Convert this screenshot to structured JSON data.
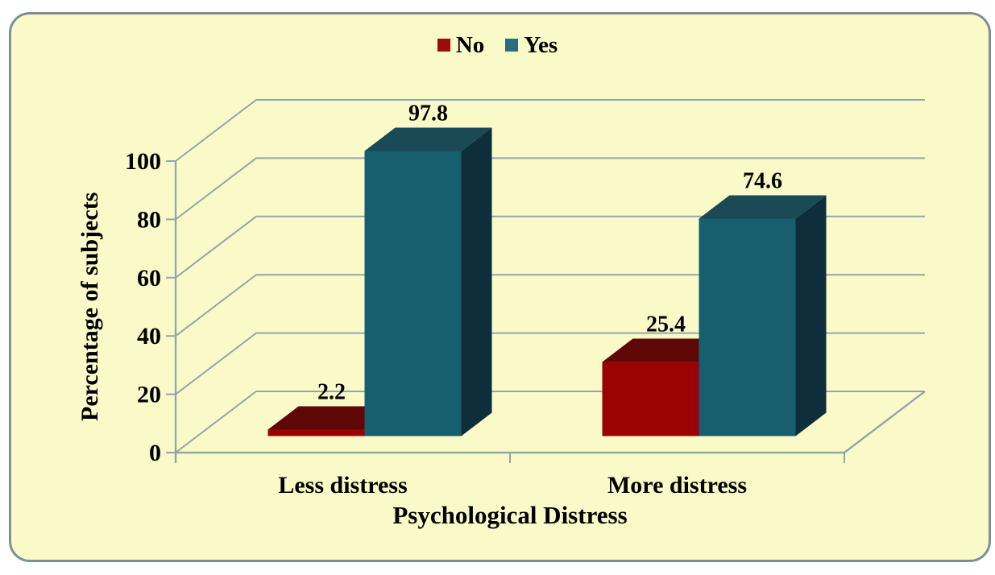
{
  "panel": {
    "background": "#fafac8",
    "border_color": "#7e8f96"
  },
  "legend": {
    "items": [
      {
        "label": "No",
        "color": "#9c0c0c"
      },
      {
        "label": "Yes",
        "color": "#2d6b7f"
      }
    ]
  },
  "chart_data": {
    "type": "bar",
    "projection": "3d",
    "categories": [
      "Less distress",
      "More distress"
    ],
    "series": [
      {
        "name": "No",
        "values": [
          2.2,
          25.4
        ],
        "labels": [
          "2.2",
          "25.4"
        ],
        "color_front": "#9b0202",
        "color_top": "#5f0606",
        "color_side": "#4d0404"
      },
      {
        "name": "Yes",
        "values": [
          97.8,
          74.6
        ],
        "labels": [
          "97.8",
          "74.6"
        ],
        "color_front": "#175e6e",
        "color_top": "#1b4a57",
        "color_side": "#0f2e3b"
      }
    ],
    "title": "",
    "xlabel": "Psychological Distress",
    "ylabel": "Percentage of subjects",
    "ylim": [
      0,
      100
    ],
    "yticks": [
      0,
      20,
      40,
      60,
      80,
      100
    ],
    "grid": true,
    "gridline_color": "#95a5ab",
    "legend_position": "top-center",
    "data_labels": true
  }
}
